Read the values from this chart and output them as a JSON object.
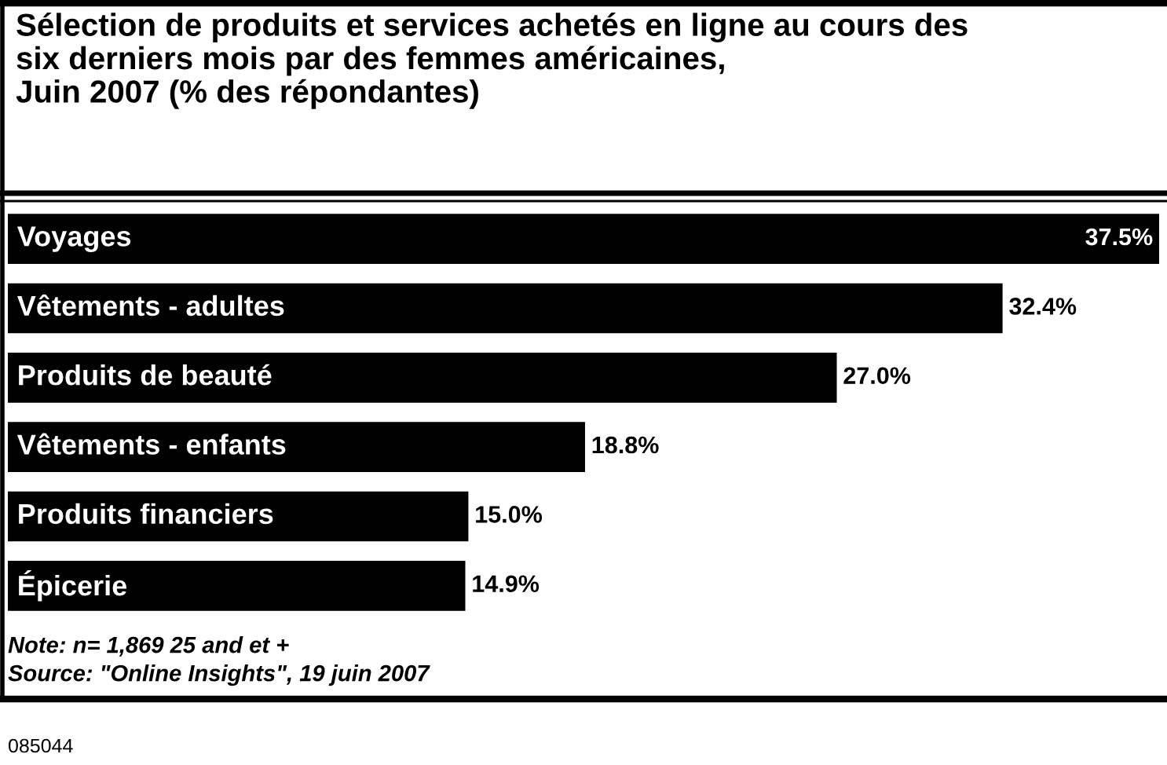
{
  "chart_data": {
    "type": "bar",
    "orientation": "horizontal",
    "title": "Sélection de produits et services achetés en ligne au cours des\nsix derniers mois par des femmes américaines,\nJuin 2007 (% des répondantes)",
    "categories": [
      "Voyages",
      "Vêtements - adultes",
      "Produits de beauté",
      "Vêtements - enfants",
      "Produits financiers",
      "Épicerie"
    ],
    "values": [
      37.5,
      32.4,
      27.0,
      18.8,
      15.0,
      14.9
    ],
    "value_labels": [
      "37.5%",
      "32.4%",
      "27.0%",
      "18.8%",
      "15.0%",
      "14.9%"
    ],
    "color": "#000000",
    "annotations": [
      "Note: n= 1,869 25 and et +",
      "Source: \"Online Insights\", 19 juin 2007",
      "085044"
    ]
  }
}
